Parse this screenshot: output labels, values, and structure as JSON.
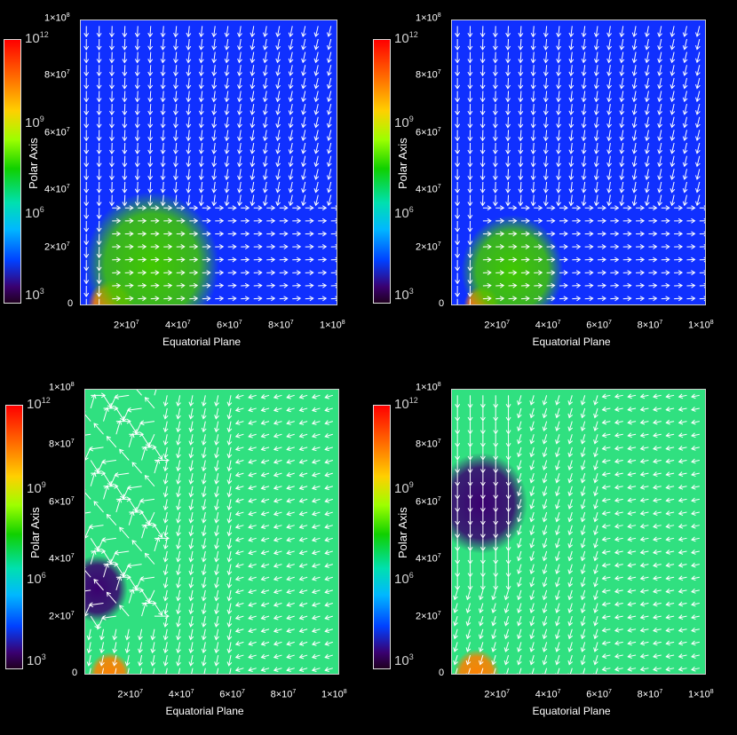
{
  "chart_data": [
    {
      "type": "heatmap",
      "panel": "top-left",
      "xlabel": "Equatorial Plane",
      "ylabel": "Polar Axis",
      "xlim": [
        0,
        100000000
      ],
      "ylim": [
        0,
        100000000
      ],
      "x_ticks": [
        "2×10^7",
        "4×10^7",
        "6×10^7",
        "8×10^7",
        "1×10^8"
      ],
      "y_ticks": [
        "0",
        "2×10^7",
        "4×10^7",
        "6×10^7",
        "8×10^7",
        "1×10^8"
      ],
      "colorbar": {
        "scale": "log",
        "ticks": [
          "10^12",
          "10^9",
          "10^6",
          "10^3"
        ],
        "range": [
          1000,
          1000000000000
        ]
      },
      "background_level": 1000000,
      "blobs": [
        {
          "x": 12000000,
          "y": 0,
          "r": 9000000,
          "level": 100000000000
        },
        {
          "x": 28000000,
          "y": 14000000,
          "r": 26000000,
          "level": 1000000000
        }
      ],
      "vector_field": "inflow from top; outflow in equatorial region"
    },
    {
      "type": "heatmap",
      "panel": "top-right",
      "xlabel": "Equatorial Plane",
      "ylabel": "Polar Axis",
      "xlim": [
        0,
        100000000
      ],
      "ylim": [
        0,
        100000000
      ],
      "x_ticks": [
        "2×10^7",
        "4×10^7",
        "6×10^7",
        "8×10^7",
        "1×10^8"
      ],
      "y_ticks": [
        "0",
        "2×10^7",
        "4×10^7",
        "6×10^7",
        "8×10^7",
        "1×10^8"
      ],
      "colorbar": {
        "scale": "log",
        "ticks": [
          "10^12",
          "10^9",
          "10^6",
          "10^3"
        ],
        "range": [
          1000,
          1000000000000
        ]
      },
      "background_level": 1000000,
      "blobs": [
        {
          "x": 12000000,
          "y": 0,
          "r": 7000000,
          "level": 100000000000
        },
        {
          "x": 24000000,
          "y": 12000000,
          "r": 20000000,
          "level": 1000000000
        }
      ],
      "vector_field": "inflow from top; outflow in equatorial region"
    },
    {
      "type": "heatmap",
      "panel": "bottom-left",
      "xlabel": "Equatorial Plane",
      "ylabel": "Polar Axis",
      "xlim": [
        0,
        100000000
      ],
      "ylim": [
        0,
        100000000
      ],
      "x_ticks": [
        "2×10^7",
        "4×10^7",
        "6×10^7",
        "8×10^7",
        "1×10^8"
      ],
      "y_ticks": [
        "0",
        "2×10^7",
        "4×10^7",
        "6×10^7",
        "8×10^7",
        "1×10^8"
      ],
      "colorbar": {
        "scale": "log",
        "ticks": [
          "10^12",
          "10^9",
          "10^6",
          "10^3"
        ],
        "range": [
          1000,
          1000000000000
        ]
      },
      "background_level": 100000000,
      "blobs": [
        {
          "x": 10000000,
          "y": 0,
          "r": 8000000,
          "level": 100000000000
        },
        {
          "x": 5000000,
          "y": 30000000,
          "r": 12000000,
          "level": 10000
        }
      ],
      "vector_field": "turbulent polar jet; inflow elsewhere"
    },
    {
      "type": "heatmap",
      "panel": "bottom-right",
      "xlabel": "Equatorial Plane",
      "ylabel": "Polar Axis",
      "xlim": [
        0,
        100000000
      ],
      "ylim": [
        0,
        100000000
      ],
      "x_ticks": [
        "2×10^7",
        "4×10^7",
        "6×10^7",
        "8×10^7",
        "1×10^8"
      ],
      "y_ticks": [
        "0",
        "2×10^7",
        "4×10^7",
        "6×10^7",
        "8×10^7",
        "1×10^8"
      ],
      "colorbar": {
        "scale": "log",
        "ticks": [
          "10^12",
          "10^9",
          "10^6",
          "10^3"
        ],
        "range": [
          1000,
          1000000000000
        ]
      },
      "background_level": 100000000,
      "blobs": [
        {
          "x": 10000000,
          "y": 0,
          "r": 9000000,
          "level": 100000000000
        },
        {
          "x": 12000000,
          "y": 60000000,
          "r": 18000000,
          "level": 10000
        }
      ],
      "vector_field": "polar cavity; inflow elsewhere"
    }
  ],
  "labels": {
    "xlabel": "Equatorial Plane",
    "ylabel": "Polar Axis",
    "zero": "0",
    "cb_base": "10",
    "cb_exp": [
      "12",
      "9",
      "6",
      "3"
    ],
    "x_base": [
      "2×10",
      "4×10",
      "6×10",
      "8×10",
      "1×10"
    ],
    "x_exp": [
      "7",
      "7",
      "7",
      "7",
      "8"
    ],
    "y_base": [
      "2×10",
      "4×10",
      "6×10",
      "8×10",
      "1×10"
    ],
    "y_exp": [
      "7",
      "7",
      "7",
      "7",
      "8"
    ]
  }
}
